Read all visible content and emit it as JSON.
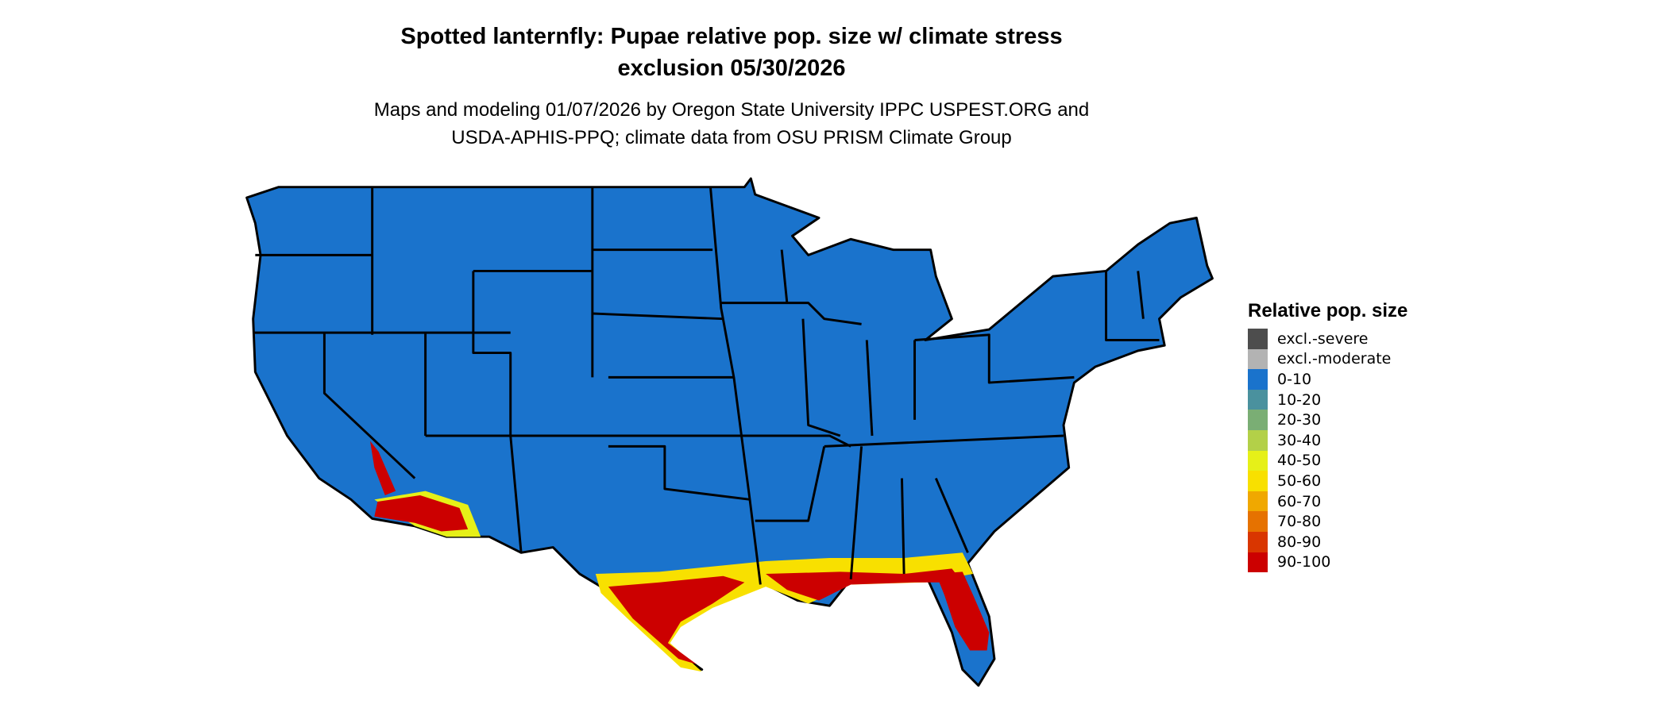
{
  "title": {
    "line1": "Spotted lanternfly: Pupae relative pop. size w/ climate stress",
    "line2": "exclusion 05/30/2026"
  },
  "subtitle": {
    "line1": "Maps and modeling 01/07/2026 by Oregon State University IPPC USPEST.ORG and",
    "line2": "USDA-APHIS-PPQ; climate data from OSU PRISM Climate Group"
  },
  "legend": {
    "title": "Relative pop. size",
    "items": [
      {
        "label": "excl.-severe",
        "color": "#4d4d4d"
      },
      {
        "label": "excl.-moderate",
        "color": "#b3b3b3"
      },
      {
        "label": "0-10",
        "color": "#1a73cc"
      },
      {
        "label": "10-20",
        "color": "#4a919e"
      },
      {
        "label": "20-30",
        "color": "#7aae74"
      },
      {
        "label": "30-40",
        "color": "#b3d048"
      },
      {
        "label": "40-50",
        "color": "#e6f018"
      },
      {
        "label": "50-60",
        "color": "#f8e000"
      },
      {
        "label": "60-70",
        "color": "#f0a800"
      },
      {
        "label": "70-80",
        "color": "#e67200"
      },
      {
        "label": "80-90",
        "color": "#d93600"
      },
      {
        "label": "90-100",
        "color": "#cc0000"
      }
    ]
  },
  "map": {
    "region": "Contiguous United States",
    "base_color": "#1a73cc",
    "border_color": "#000000"
  }
}
